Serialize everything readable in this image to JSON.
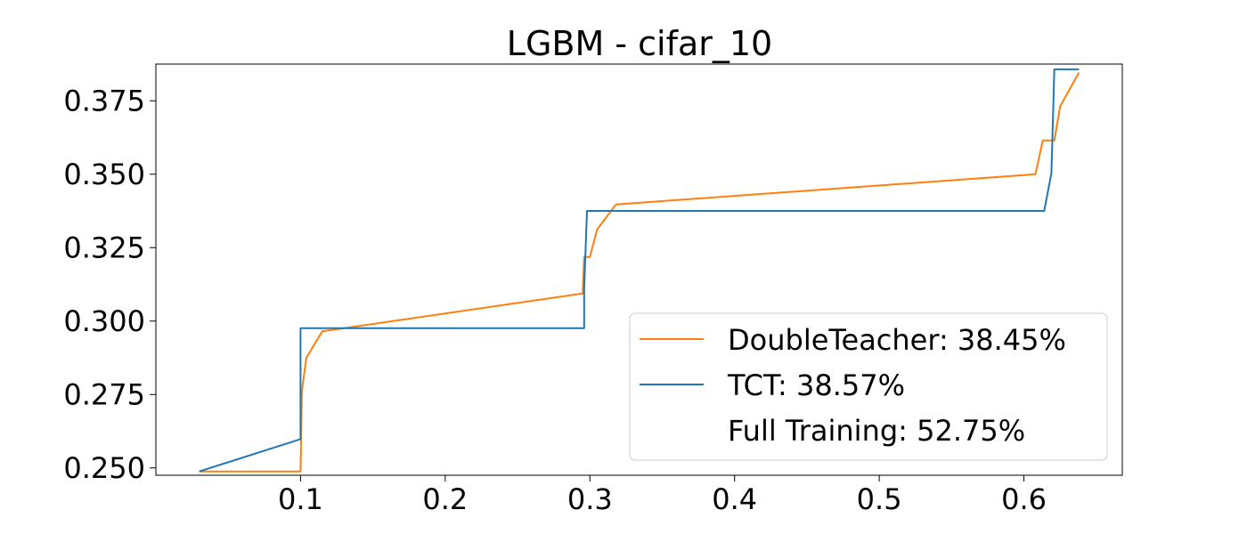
{
  "chart_data": {
    "type": "line",
    "title": "LGBM - cifar_10",
    "xlabel": "",
    "ylabel": "",
    "xlim": [
      0.0,
      0.668
    ],
    "ylim": [
      0.2475,
      0.3875
    ],
    "xticks": [
      0.1,
      0.2,
      0.3,
      0.4,
      0.5,
      0.6
    ],
    "xtick_labels": [
      "0.1",
      "0.2",
      "0.3",
      "0.4",
      "0.5",
      "0.6"
    ],
    "yticks": [
      0.25,
      0.275,
      0.3,
      0.325,
      0.35,
      0.375
    ],
    "ytick_labels": [
      "0.250",
      "0.275",
      "0.300",
      "0.325",
      "0.350",
      "0.375"
    ],
    "grid": false,
    "legend_position": "lower-right",
    "series": [
      {
        "name": "DoubleTeacher: 38.45%",
        "color": "#ff7f0e",
        "x": [
          0.03,
          0.1,
          0.101,
          0.104,
          0.115,
          0.295,
          0.296,
          0.3,
          0.305,
          0.318,
          0.608,
          0.613,
          0.621,
          0.625,
          0.638
        ],
        "y": [
          0.2488,
          0.2488,
          0.2763,
          0.2875,
          0.2965,
          0.3094,
          0.3218,
          0.3218,
          0.3312,
          0.3397,
          0.35,
          0.3615,
          0.3615,
          0.3731,
          0.3846
        ]
      },
      {
        "name": "TCT: 38.57%",
        "color": "#1f77b4",
        "x": [
          0.03,
          0.1,
          0.1,
          0.296,
          0.296,
          0.298,
          0.614,
          0.619,
          0.621,
          0.638
        ],
        "y": [
          0.2488,
          0.2598,
          0.2976,
          0.2976,
          0.3107,
          0.3375,
          0.3375,
          0.3503,
          0.3857,
          0.3857
        ]
      }
    ],
    "legend_entries": [
      "DoubleTeacher: 38.45%",
      "TCT: 38.57%",
      "Full Training: 52.75%"
    ]
  }
}
